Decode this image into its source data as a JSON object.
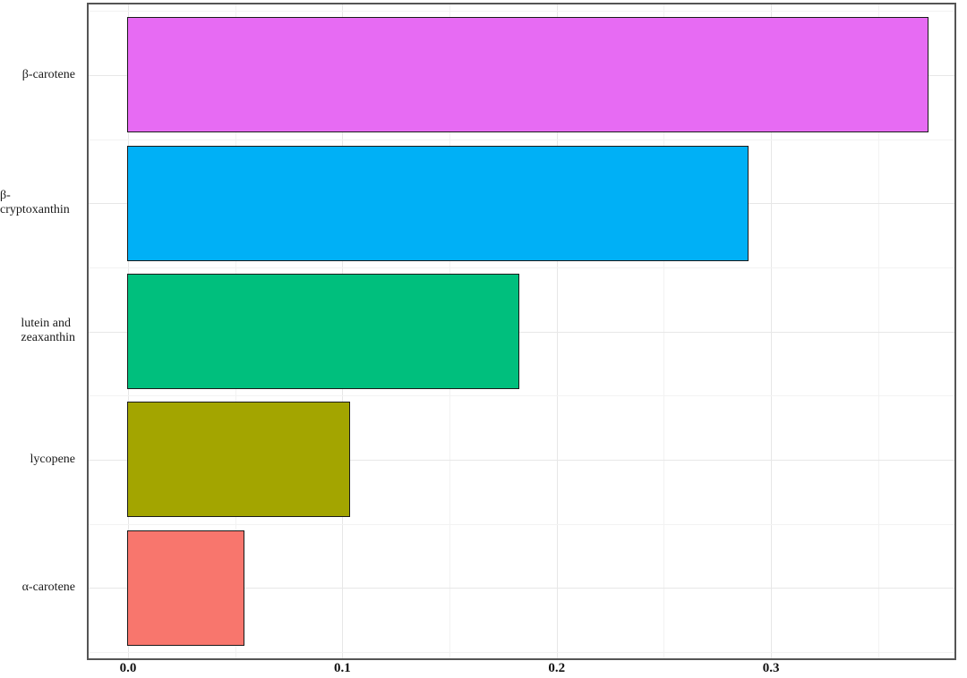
{
  "figure": {
    "background": "#ffffff",
    "panel_border_color": "#555555",
    "major_gridline_color": "#e7e7e7",
    "minor_gridline_color": "#f2f2f2",
    "axis_text_color": "#1a1a1a"
  },
  "chart_data": {
    "type": "bar",
    "orientation": "horizontal",
    "title": "",
    "xlabel": "",
    "ylabel": "",
    "categories": [
      "β-carotene",
      "β-cryptoxanthin",
      "lutein and\nzeaxanthin",
      "lycopene",
      "α-carotene"
    ],
    "values": [
      0.373,
      0.289,
      0.182,
      0.103,
      0.054
    ],
    "bar_colors": [
      "#E76BF3",
      "#00B0F6",
      "#00BF7D",
      "#A3A500",
      "#F8766D"
    ],
    "bar_border_color": "#1a1a1a",
    "x_ticks": [
      0.0,
      0.1,
      0.2,
      0.3
    ],
    "x_tick_labels": [
      "0.0",
      "0.1",
      "0.2",
      "0.3"
    ],
    "x_minor_gridlines": [
      0.05,
      0.15,
      0.25,
      0.35
    ],
    "xlim": [
      -0.0184,
      0.3856
    ],
    "grid": true,
    "legend": "none"
  }
}
